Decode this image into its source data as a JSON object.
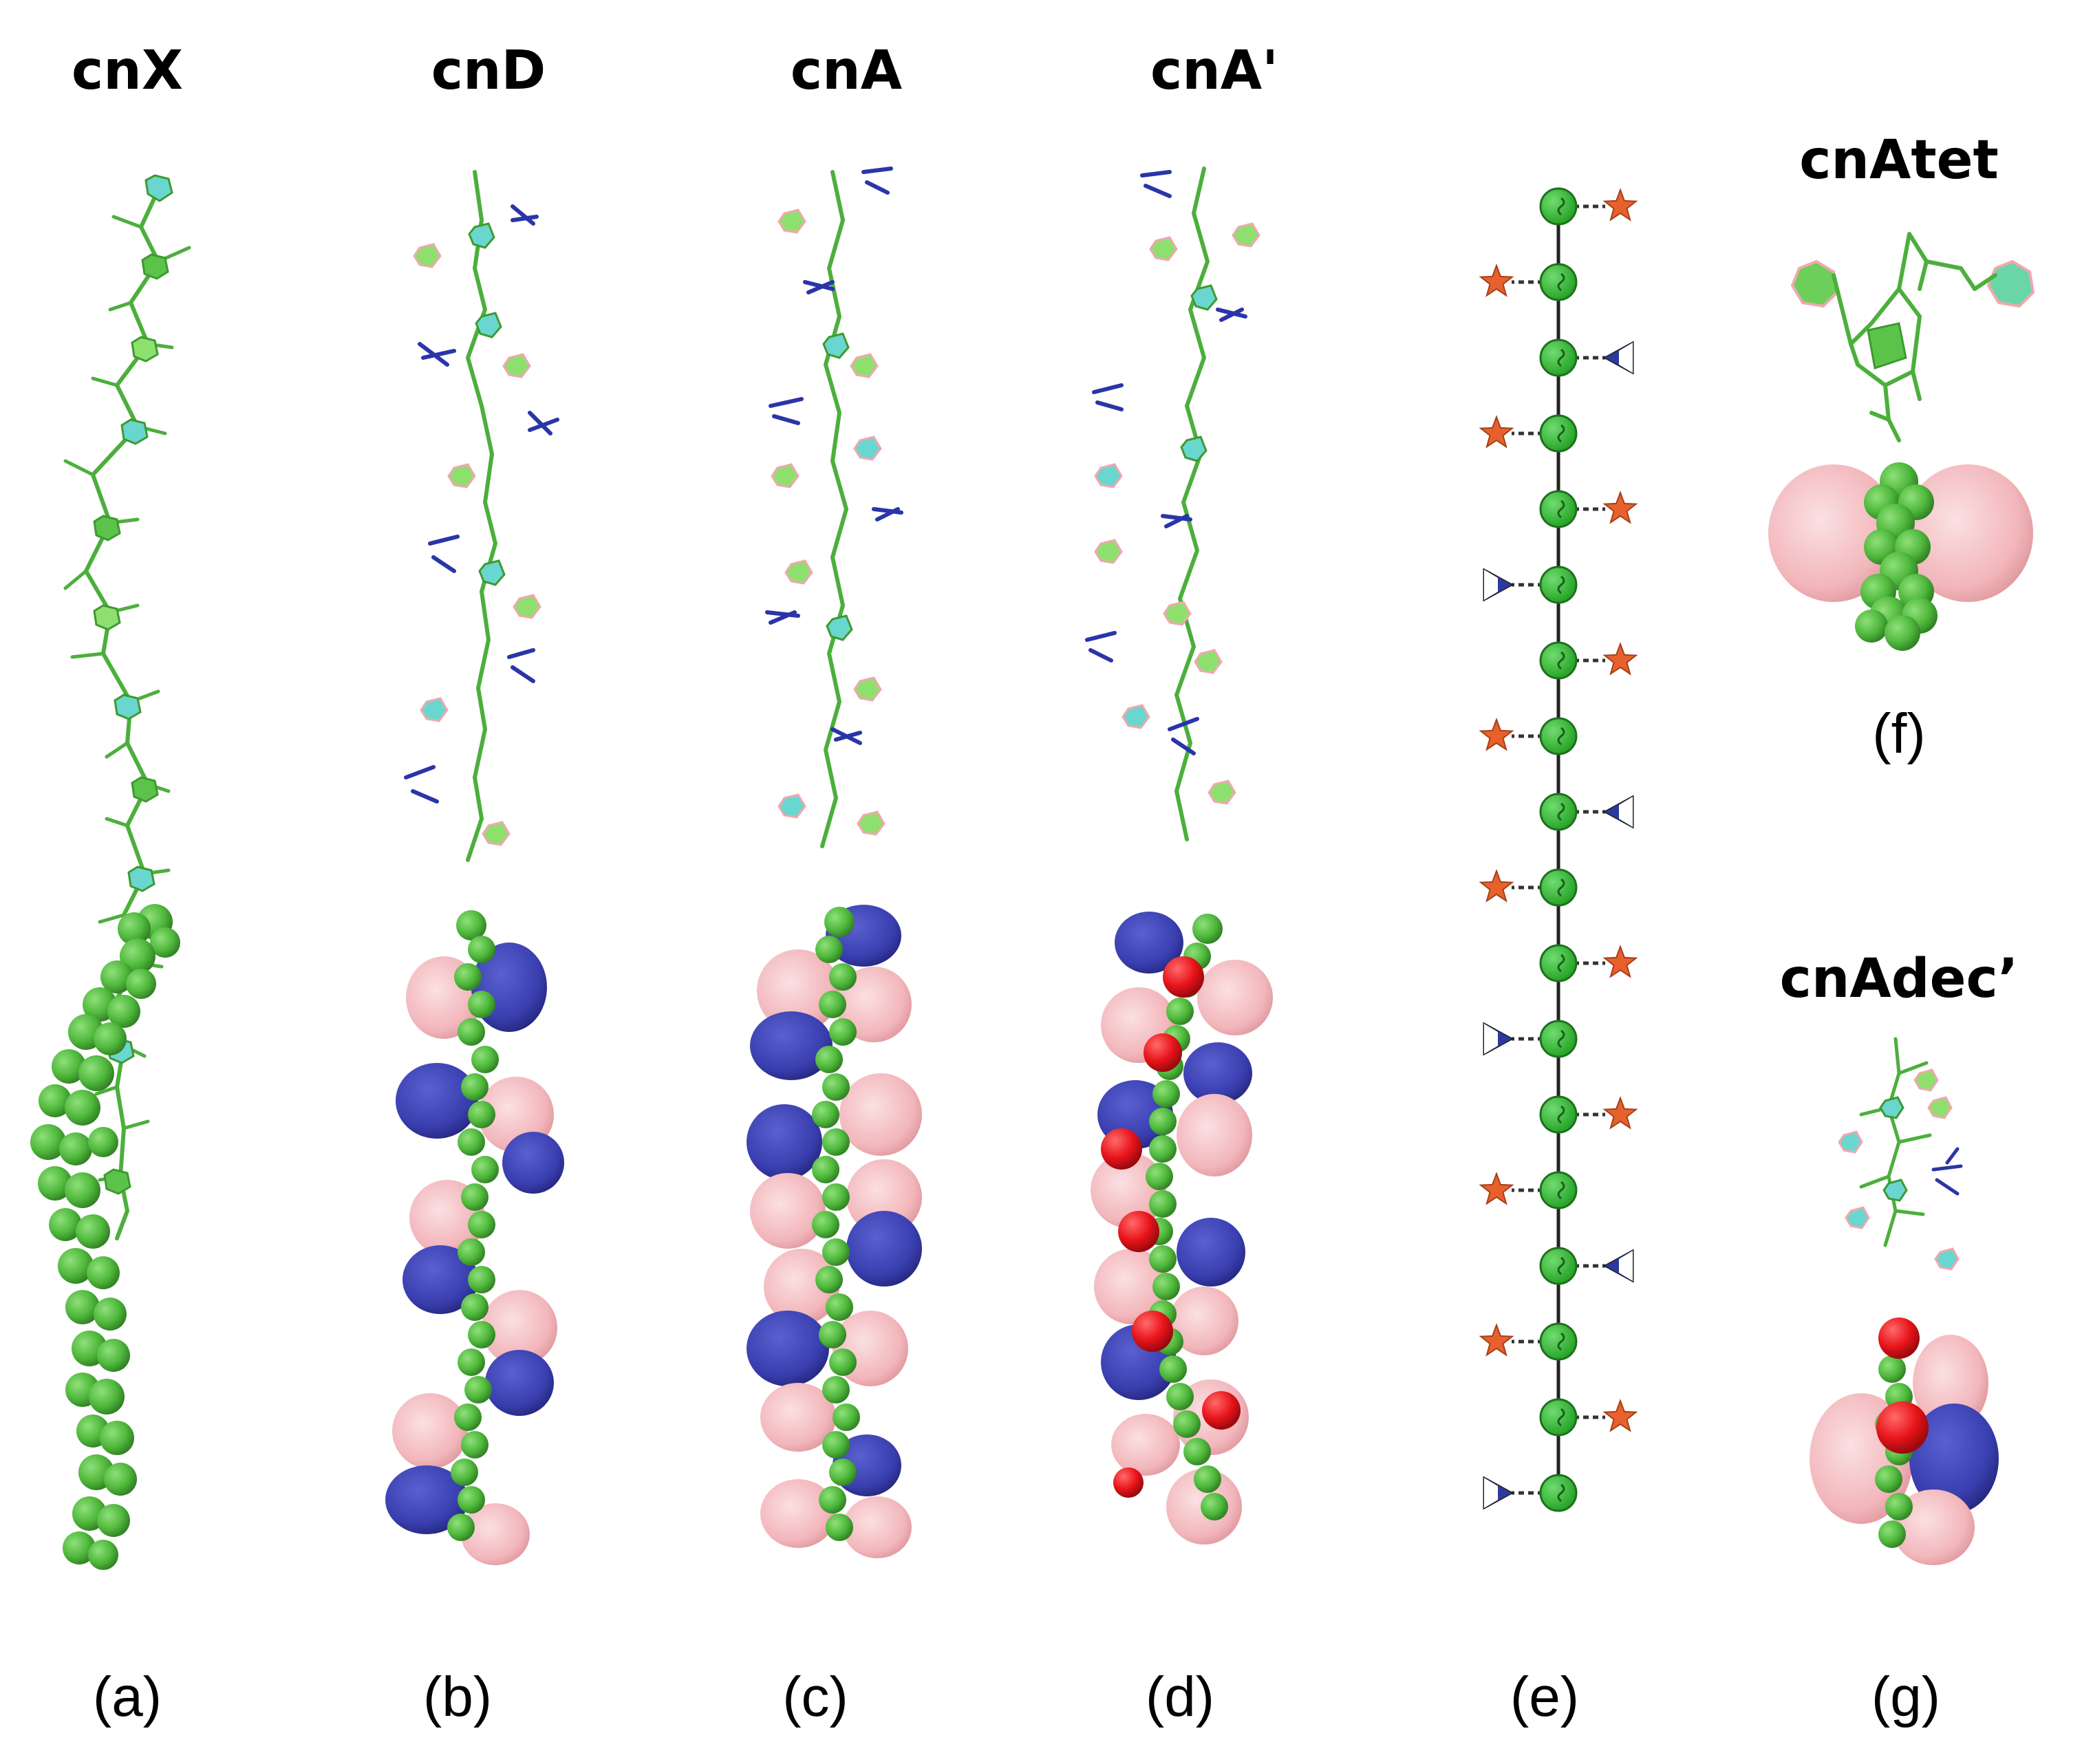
{
  "panels": [
    {
      "id": "a",
      "title": "cnX",
      "label": "(a)"
    },
    {
      "id": "b",
      "title": "cnD",
      "label": "(b)"
    },
    {
      "id": "c",
      "title": "cnA",
      "label": "(c)"
    },
    {
      "id": "d",
      "title": "cnA'",
      "label": "(d)"
    },
    {
      "id": "e",
      "title": "",
      "label": "(e)"
    },
    {
      "id": "f",
      "title": "cnAtet",
      "label": "(f)"
    },
    {
      "id": "g",
      "title": "cnAdec’",
      "label": "(g)"
    }
  ],
  "symbol_chain": {
    "backbone_units": 18,
    "side_groups": [
      "star-right",
      "star-left",
      "triangle-right",
      "star-left",
      "star-right",
      "triangle-left",
      "star-right",
      "star-left",
      "triangle-right",
      "star-left",
      "star-right",
      "triangle-left",
      "star-right",
      "star-left",
      "triangle-right",
      "star-left",
      "star-right",
      "triangle-left"
    ]
  },
  "colors": {
    "backbone_green": "#4caf3c",
    "glucose_green": "#3fbf3f",
    "pink_surface": "#f3b8bd",
    "blue_surface": "#3a3fb0",
    "red_sphere": "#e8141a",
    "star_orange": "#e8612c",
    "triangle_blue": "#2c3a9e",
    "cyan_ring": "#5fd6c9"
  }
}
